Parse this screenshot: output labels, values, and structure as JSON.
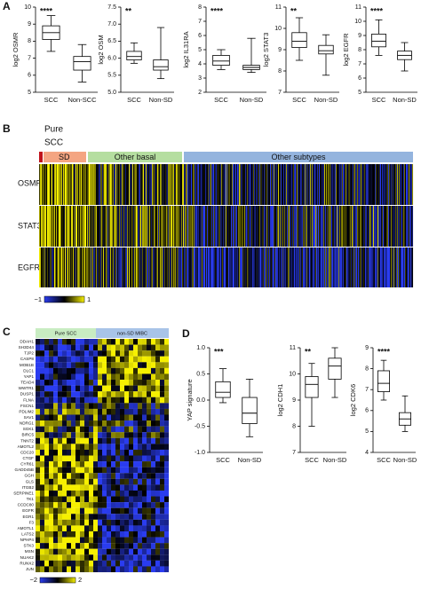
{
  "panel_labels": [
    "A",
    "B",
    "C",
    "D"
  ],
  "chart_data": [
    {
      "type": "box",
      "ylabel": "log2 OSMR",
      "annotation": "****",
      "categories": [
        "SCC",
        "Non-SCC"
      ],
      "boxes": [
        {
          "min": 7.4,
          "q1": 8.1,
          "median": 8.5,
          "q3": 8.9,
          "max": 9.5
        },
        {
          "min": 5.6,
          "q1": 6.3,
          "median": 6.8,
          "q3": 7.1,
          "max": 7.8
        }
      ],
      "ylim": [
        5,
        10
      ],
      "yticks": [
        5,
        6,
        7,
        8,
        9,
        10
      ]
    },
    {
      "type": "box",
      "ylabel": "log2 OSM",
      "annotation": "**",
      "categories": [
        "SCC",
        "Non-SD"
      ],
      "boxes": [
        {
          "min": 5.85,
          "q1": 5.95,
          "median": 6.05,
          "q3": 6.2,
          "max": 6.45
        },
        {
          "min": 5.4,
          "q1": 5.65,
          "median": 5.75,
          "q3": 5.95,
          "max": 6.9
        }
      ],
      "ylim": [
        5,
        7.5
      ],
      "yticks": [
        {
          "value": 5,
          "label": "5.0"
        },
        5.5,
        {
          "value": 6,
          "label": "6.0"
        },
        6.5,
        {
          "value": 7,
          "label": "7.0"
        },
        7.5
      ]
    },
    {
      "type": "box",
      "ylabel": "log2 IL31RA",
      "annotation": "****",
      "categories": [
        "SCC",
        "Non-SD"
      ],
      "boxes": [
        {
          "min": 3.6,
          "q1": 3.9,
          "median": 4.2,
          "q3": 4.6,
          "max": 5.0
        },
        {
          "min": 3.4,
          "q1": 3.6,
          "median": 3.75,
          "q3": 3.9,
          "max": 5.8
        }
      ],
      "ylim": [
        2,
        8
      ],
      "yticks": [
        2,
        3,
        4,
        5,
        6,
        7,
        8
      ]
    },
    {
      "type": "box",
      "ylabel": "log2 STAT3",
      "annotation": "**",
      "categories": [
        "SCC",
        "Non-SD"
      ],
      "boxes": [
        {
          "min": 8.5,
          "q1": 9.1,
          "median": 9.4,
          "q3": 9.8,
          "max": 10.5
        },
        {
          "min": 7.8,
          "q1": 8.8,
          "median": 8.95,
          "q3": 9.2,
          "max": 9.7
        }
      ],
      "ylim": [
        7,
        11
      ],
      "yticks": [
        7,
        8,
        9,
        10,
        11
      ]
    },
    {
      "type": "box",
      "ylabel": "log2 EGFR",
      "annotation": "****",
      "categories": [
        "SCC",
        "Non-SD"
      ],
      "boxes": [
        {
          "min": 7.6,
          "q1": 8.2,
          "median": 8.6,
          "q3": 9.1,
          "max": 10.1
        },
        {
          "min": 6.5,
          "q1": 7.3,
          "median": 7.6,
          "q3": 7.9,
          "max": 8.5
        }
      ],
      "ylim": [
        5,
        11
      ],
      "yticks": [
        5,
        6,
        7,
        8,
        9,
        10,
        11
      ]
    },
    {
      "type": "box",
      "ylabel": "YAP signature",
      "annotation": "***",
      "categories": [
        "SCC",
        "Non-SD"
      ],
      "boxes": [
        {
          "min": -0.05,
          "q1": 0.05,
          "median": 0.15,
          "q3": 0.35,
          "max": 0.6
        },
        {
          "min": -0.7,
          "q1": -0.45,
          "median": -0.25,
          "q3": 0.05,
          "max": 0.4
        }
      ],
      "ylim": [
        -1,
        1
      ],
      "yticks": [
        {
          "value": -1,
          "label": "-1.0"
        },
        -0.5,
        {
          "value": 0,
          "label": "0.0"
        },
        0.5,
        {
          "value": 1,
          "label": "1.0"
        }
      ]
    },
    {
      "type": "box",
      "ylabel": "log2 CDH1",
      "annotation": "**",
      "categories": [
        "SCC",
        "Non-SD"
      ],
      "boxes": [
        {
          "min": 8.0,
          "q1": 9.1,
          "median": 9.6,
          "q3": 9.9,
          "max": 10.4
        },
        {
          "min": 9.1,
          "q1": 9.8,
          "median": 10.3,
          "q3": 10.6,
          "max": 11.0
        }
      ],
      "ylim": [
        7,
        11
      ],
      "yticks": [
        7,
        8,
        9,
        10,
        11
      ]
    },
    {
      "type": "box",
      "ylabel": "log2 CDK6",
      "annotation": "****",
      "categories": [
        "SCC",
        "Non-SD"
      ],
      "boxes": [
        {
          "min": 6.5,
          "q1": 6.9,
          "median": 7.3,
          "q3": 7.9,
          "max": 8.4
        },
        {
          "min": 5.0,
          "q1": 5.3,
          "median": 5.6,
          "q3": 5.9,
          "max": 6.7
        }
      ],
      "ylim": [
        4,
        9
      ],
      "yticks": [
        4,
        5,
        6,
        7,
        8,
        9
      ]
    }
  ],
  "heatmap_b": {
    "corner_label": [
      "Pure",
      "SCC"
    ],
    "groups": [
      "SD",
      "Other basal",
      "Other subtypes"
    ],
    "rows": [
      "OSMR",
      "STAT3",
      "EGFR"
    ],
    "colorbar": [
      "−1",
      "1"
    ]
  },
  "heatmap_c": {
    "groups": [
      "Pure SCC",
      "non-SD MIBC"
    ],
    "rows": [
      "DDAH1",
      "SH3D44",
      "TJP2",
      "CASP8",
      "MOB1B",
      "DLC1",
      "YAP1",
      "TEAD4",
      "WWTR1",
      "DUSP1",
      "FLNA",
      "FSCN1",
      "PDLIM2",
      "SAV1",
      "NDRG1",
      "SGK1",
      "BIRC5",
      "TNNT2",
      "AMOTL2",
      "CDC20",
      "CTGF",
      "CYR61",
      "GADD45B",
      "GGH",
      "GLS",
      "ITGB2",
      "SERPINE1",
      "TK1",
      "CCDC80",
      "EGFR",
      "EGR1",
      "F3",
      "AMOTL1",
      "LATS2",
      "NPHP4",
      "STK3",
      "MSN",
      "NUAK2",
      "RUNX2",
      "JUN"
    ],
    "colorbar": [
      "−2",
      "2"
    ]
  }
}
